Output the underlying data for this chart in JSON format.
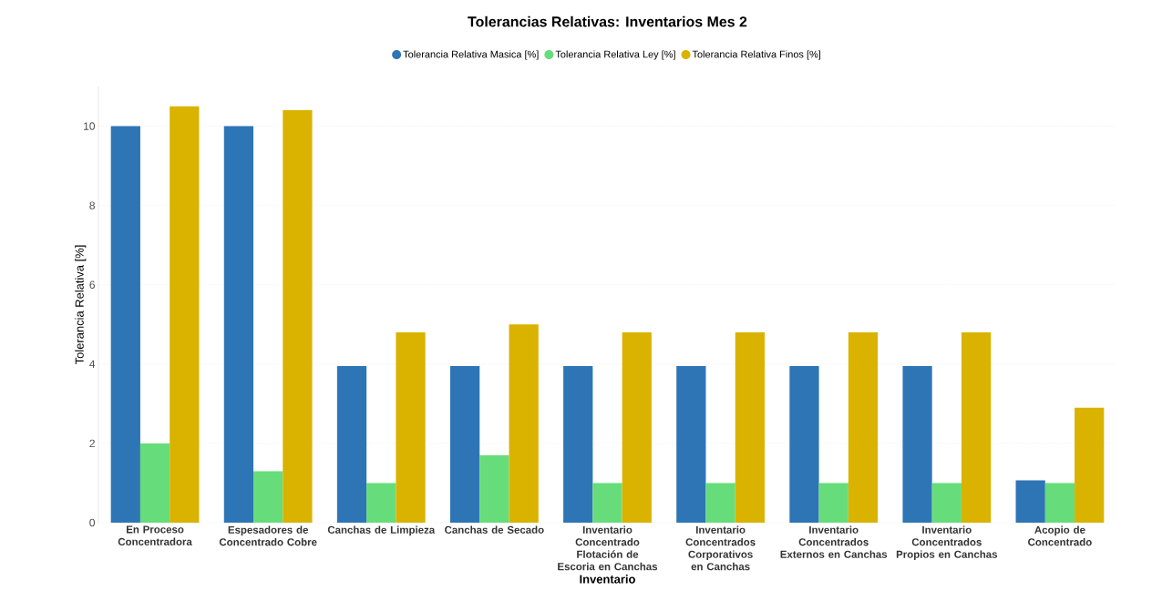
{
  "chart_data": {
    "type": "bar",
    "title": "Tolerancias Relativas: Inventarios Mes 2",
    "xlabel": "Inventario",
    "ylabel": "Tolerancia Relativa [%]",
    "categories": [
      "En Proceso Concentradora",
      "Espesadores de Concentrado Cobre",
      "Canchas de Limpieza",
      "Canchas de Secado",
      "Inventario Concentrado Flotación de Escoria en Canchas",
      "Inventario Concentrados Corporativos en Canchas",
      "Inventario Concentrados Externos en Canchas",
      "Inventario Concentrados Propios en Canchas",
      "Acopio de Concentrado"
    ],
    "series": [
      {
        "name": "Tolerancia Relativa Masica [%]",
        "color": "#2e75b6",
        "values": [
          10,
          10,
          3.95,
          3.95,
          3.95,
          3.95,
          3.95,
          3.95,
          1.07
        ]
      },
      {
        "name": "Tolerancia Relativa Ley [%]",
        "color": "#66dd7a",
        "values": [
          2.0,
          1.3,
          1.0,
          1.7,
          1.0,
          1.0,
          1.0,
          1.0,
          1.0
        ]
      },
      {
        "name": "Tolerancia Relativa Finos [%]",
        "color": "#d9b300",
        "values": [
          10.5,
          10.4,
          4.8,
          5.0,
          4.8,
          4.8,
          4.8,
          4.8,
          2.9
        ]
      }
    ],
    "ylim": [
      0,
      11
    ],
    "yticks": [
      0,
      2,
      4,
      6,
      8,
      10
    ],
    "grid": "y",
    "legend": "top"
  }
}
